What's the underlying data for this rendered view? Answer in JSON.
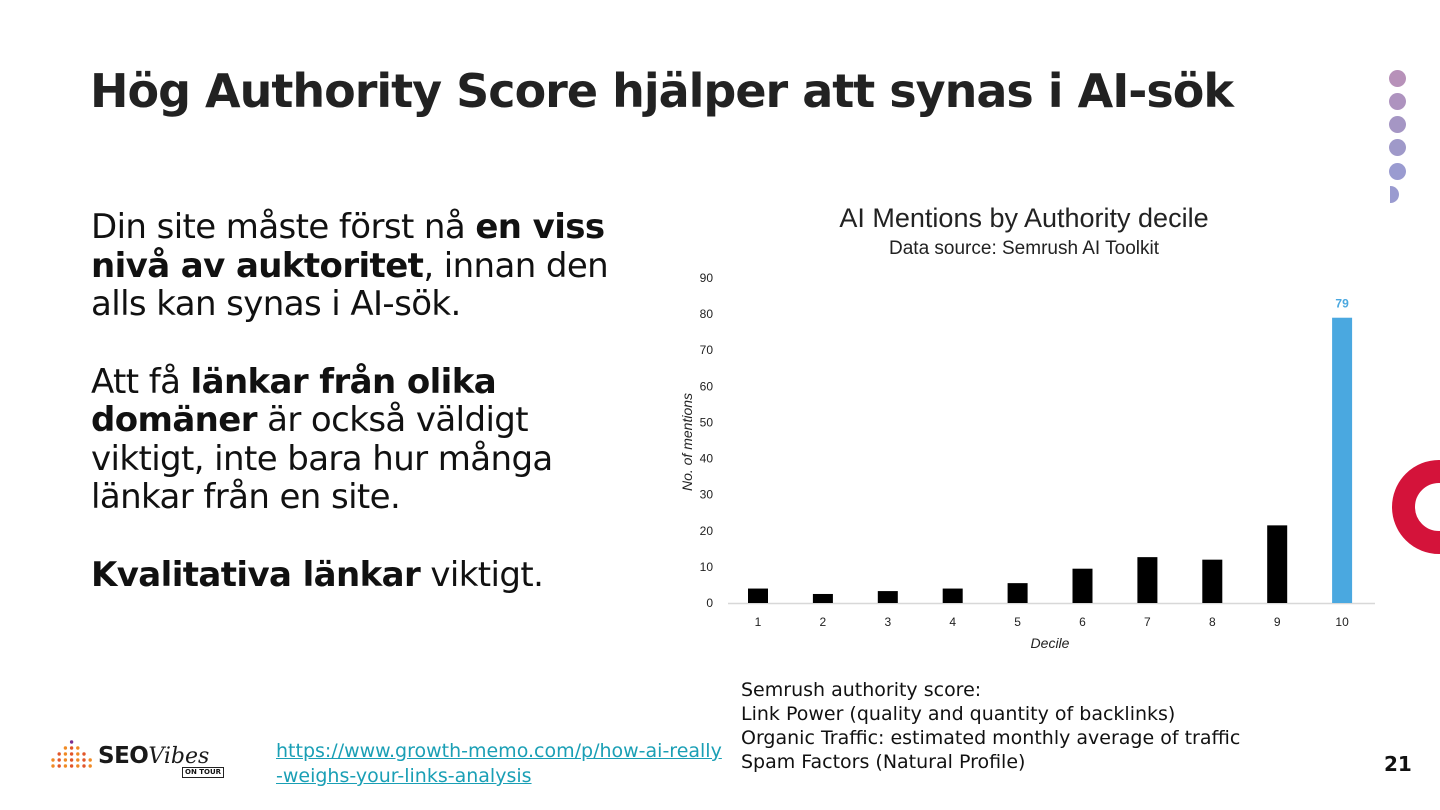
{
  "slide": {
    "title": "Hög Authority Score hjälper att synas i AI-sök",
    "page_number": "21",
    "colors": {
      "accent_red": "#d4133a",
      "dot_palette": [
        "#b791b9",
        "#ae93bf",
        "#a596c4",
        "#9f99c9",
        "#9a9bd0"
      ]
    },
    "paragraphs": [
      [
        {
          "text": "Din site måste först nå ",
          "bold": false
        },
        {
          "text": "en viss nivå av auktoritet",
          "bold": true
        },
        {
          "text": ", innan den alls kan synas i AI-sök.",
          "bold": false
        }
      ],
      [
        {
          "text": "Att få ",
          "bold": false
        },
        {
          "text": "länkar från olika domäner",
          "bold": true
        },
        {
          "text": " är också väldigt viktigt, inte bara hur många länkar från en site.",
          "bold": false
        }
      ],
      [
        {
          "text": "Kvalitativa länkar",
          "bold": true
        },
        {
          "text": " viktigt.",
          "bold": false
        }
      ]
    ],
    "source_link": {
      "text": "https://www.growth-memo.com/p/how-ai-really-weighs-your-links-analysis"
    },
    "notes": [
      "Semrush authority score:",
      "Link Power (quality and quantity of backlinks)",
      "Organic Traffic: estimated monthly average of traffic",
      "Spam Factors (Natural Profile)"
    ],
    "logo": {
      "brand": "SEO",
      "brand_script": "Vibes",
      "tagline": "ON TOUR"
    }
  },
  "chart_data": {
    "type": "bar",
    "title": "AI Mentions by Authority decile",
    "subtitle": "Data source: Semrush AI Toolkit",
    "xlabel": "Decile",
    "ylabel": "No. of mentions",
    "ylim": [
      0,
      90
    ],
    "yticks": [
      0,
      10,
      20,
      30,
      40,
      50,
      60,
      70,
      80,
      90
    ],
    "categories": [
      "1",
      "2",
      "3",
      "4",
      "5",
      "6",
      "7",
      "8",
      "9",
      "10"
    ],
    "values": [
      4,
      2.5,
      3.3,
      4,
      5.5,
      9.5,
      12.7,
      12,
      21.5,
      79
    ],
    "highlight": {
      "index": 9,
      "label": "79",
      "color": "#4aa8e0"
    },
    "bar_color": "#000000",
    "grid": false
  }
}
